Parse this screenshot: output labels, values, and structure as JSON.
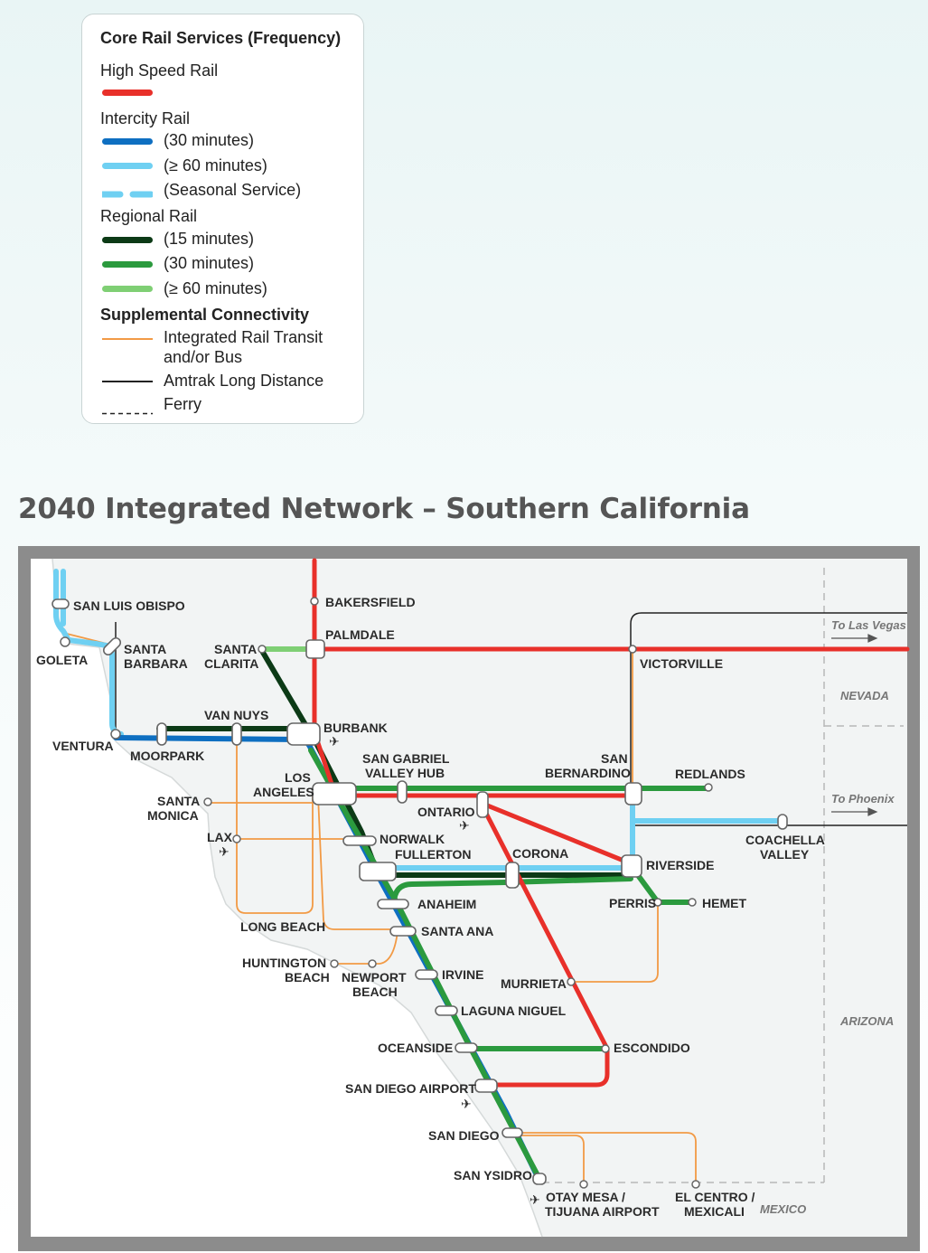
{
  "legend": {
    "title": "Core Rail Services (Frequency)",
    "high_speed": {
      "heading": "High Speed Rail",
      "color": "#e8302a"
    },
    "intercity": {
      "heading": "Intercity Rail",
      "items": [
        {
          "label": "(30 minutes)",
          "color": "#0e6fc1",
          "style": "solid"
        },
        {
          "label": "(≥ 60 minutes)",
          "color": "#6fd0f2",
          "style": "solid"
        },
        {
          "label": "(Seasonal Service)",
          "color": "#6fd0f2",
          "style": "dashed"
        }
      ]
    },
    "regional": {
      "heading": "Regional Rail",
      "items": [
        {
          "label": "(15 minutes)",
          "color": "#0c3a16"
        },
        {
          "label": "(30 minutes)",
          "color": "#2b9a3e"
        },
        {
          "label": "(≥ 60 minutes)",
          "color": "#7fcf74"
        }
      ]
    },
    "supplemental": {
      "heading": "Supplemental Connectivity",
      "items": [
        {
          "label_line1": "Integrated Rail Transit",
          "label_line2": "and/or Bus",
          "color": "#f29a45"
        },
        {
          "label": "Amtrak Long Distance",
          "color": "#222222"
        },
        {
          "label": "Ferry",
          "color": "#222222",
          "style": "dashed"
        }
      ]
    }
  },
  "page_title": "2040 Integrated Network – Southern California",
  "map": {
    "stations": {
      "san_luis_obispo": "SAN LUIS OBISPO",
      "goleta": "GOLETA",
      "santa_barbara": [
        "SANTA",
        "BARBARA"
      ],
      "santa_clarita": [
        "SANTA",
        "CLARITA"
      ],
      "bakersfield": "BAKERSFIELD",
      "palmdale": "PALMDALE",
      "victorville": "VICTORVILLE",
      "ventura": "VENTURA",
      "moorpark": "MOORPARK",
      "van_nuys": "VAN NUYS",
      "burbank": "BURBANK",
      "san_gabriel_valley_hub": [
        "SAN GABRIEL",
        "VALLEY HUB"
      ],
      "san_bernardino": [
        "SAN",
        "BERNARDINO"
      ],
      "redlands": "REDLANDS",
      "los_angeles": [
        "LOS",
        "ANGELES"
      ],
      "santa_monica": [
        "SANTA",
        "MONICA"
      ],
      "ontario": "ONTARIO",
      "coachella_valley": [
        "COACHELLA",
        "VALLEY"
      ],
      "lax": "LAX",
      "norwalk": "NORWALK",
      "fullerton": "FULLERTON",
      "corona": "CORONA",
      "riverside": "RIVERSIDE",
      "perris": "PERRIS",
      "hemet": "HEMET",
      "anaheim": "ANAHEIM",
      "long_beach": "LONG BEACH",
      "santa_ana": "SANTA ANA",
      "huntington_beach": [
        "HUNTINGTON",
        "BEACH"
      ],
      "newport_beach": [
        "NEWPORT",
        "BEACH"
      ],
      "irvine": "IRVINE",
      "murrieta": "MURRIETA",
      "laguna_niguel": "LAGUNA NIGUEL",
      "oceanside": "OCEANSIDE",
      "escondido": "ESCONDIDO",
      "san_diego_airport": "SAN DIEGO AIRPORT",
      "san_diego": "SAN DIEGO",
      "san_ysidro": "SAN YSIDRO",
      "otay_mesa": [
        "OTAY MESA /",
        "TIJUANA AIRPORT"
      ],
      "el_centro": [
        "EL CENTRO /",
        "MEXICALI"
      ]
    },
    "regions": {
      "to_las_vegas": "To Las Vegas",
      "to_phoenix": "To Phoenix",
      "nevada": "NEVADA",
      "arizona": "ARIZONA",
      "mexico": "MEXICO"
    },
    "airplane_glyph": "✈"
  }
}
